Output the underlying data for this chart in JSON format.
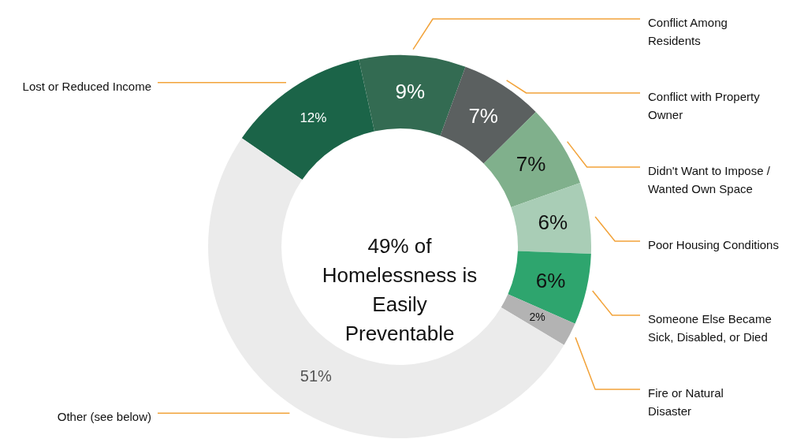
{
  "chart_data": {
    "type": "donut",
    "categories": [
      "Lost or Reduced Income",
      "Conflict Among Residents",
      "Conflict with Property Owner",
      "Didn't Want to Impose / Wanted Own Space",
      "Poor Housing Conditions",
      "Someone Else Became Sick, Disabled, or Died",
      "Fire or Natural Disaster",
      "Other (see below)"
    ],
    "values": [
      12,
      9,
      7,
      7,
      6,
      6,
      2,
      51
    ],
    "colors": [
      "#1b6448",
      "#336b52",
      "#5b6060",
      "#80b08c",
      "#a9cdb6",
      "#2ea56e",
      "#b3b3b3",
      "#ebebeb"
    ],
    "value_labels": [
      "12%",
      "9%",
      "7%",
      "7%",
      "6%",
      "6%",
      "2%",
      "51%"
    ],
    "annotations": [
      "49% of Homelessness is Easily Preventable"
    ]
  }
}
